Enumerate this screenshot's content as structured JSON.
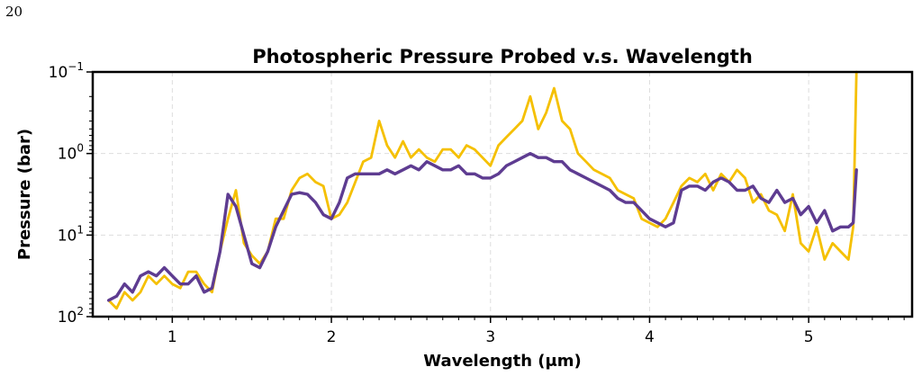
{
  "page_number": "20",
  "chart_data": {
    "type": "line",
    "title": "Photospheric Pressure Probed v.s. Wavelength",
    "xlabel": "Wavelength (μm)",
    "ylabel": "Pressure (bar)",
    "xlim": [
      0.5,
      5.65
    ],
    "ylim_log10": [
      2,
      -1
    ],
    "y_axis": "log, inverted (high pressure at bottom)",
    "grid": true,
    "x_ticks": [
      1,
      2,
      3,
      4,
      5
    ],
    "x_tick_labels": [
      "1",
      "2",
      "3",
      "4",
      "5"
    ],
    "y_ticks_log10": [
      -1,
      0,
      1,
      2
    ],
    "y_tick_bases": [
      "10",
      "10",
      "10",
      "10"
    ],
    "y_tick_exponents": [
      "−1",
      "0",
      "1",
      "2"
    ],
    "series": [
      {
        "color": "#F5C000",
        "x": [
          0.6,
          0.65,
          0.7,
          0.75,
          0.8,
          0.85,
          0.9,
          0.95,
          1.0,
          1.05,
          1.1,
          1.15,
          1.2,
          1.25,
          1.3,
          1.35,
          1.4,
          1.45,
          1.5,
          1.55,
          1.6,
          1.65,
          1.7,
          1.75,
          1.8,
          1.85,
          1.9,
          1.95,
          2.0,
          2.05,
          2.1,
          2.15,
          2.2,
          2.25,
          2.3,
          2.35,
          2.4,
          2.45,
          2.5,
          2.55,
          2.6,
          2.65,
          2.7,
          2.75,
          2.8,
          2.85,
          2.9,
          2.95,
          3.0,
          3.05,
          3.1,
          3.15,
          3.2,
          3.25,
          3.3,
          3.35,
          3.4,
          3.45,
          3.5,
          3.55,
          3.6,
          3.65,
          3.7,
          3.75,
          3.8,
          3.85,
          3.9,
          3.95,
          4.0,
          4.05,
          4.1,
          4.15,
          4.2,
          4.25,
          4.3,
          4.35,
          4.4,
          4.45,
          4.5,
          4.55,
          4.6,
          4.65,
          4.7,
          4.75,
          4.8,
          4.85,
          4.9,
          4.95,
          5.0,
          5.05,
          5.1,
          5.15,
          5.2,
          5.25,
          5.28,
          5.3
        ],
        "y_log10": [
          1.8,
          1.9,
          1.7,
          1.8,
          1.7,
          1.5,
          1.6,
          1.5,
          1.6,
          1.65,
          1.45,
          1.45,
          1.6,
          1.7,
          1.2,
          0.8,
          0.45,
          1.1,
          1.25,
          1.35,
          1.2,
          0.8,
          0.8,
          0.45,
          0.3,
          0.25,
          0.35,
          0.4,
          0.8,
          0.75,
          0.6,
          0.35,
          0.1,
          0.05,
          -0.4,
          -0.1,
          0.05,
          -0.15,
          0.05,
          -0.05,
          0.05,
          0.1,
          -0.05,
          -0.05,
          0.05,
          -0.1,
          -0.05,
          0.05,
          0.15,
          -0.1,
          -0.2,
          -0.3,
          -0.4,
          -0.7,
          -0.3,
          -0.5,
          -0.8,
          -0.4,
          -0.3,
          0.0,
          0.1,
          0.2,
          0.25,
          0.3,
          0.45,
          0.5,
          0.55,
          0.8,
          0.85,
          0.9,
          0.8,
          0.6,
          0.4,
          0.3,
          0.35,
          0.25,
          0.45,
          0.25,
          0.35,
          0.2,
          0.3,
          0.6,
          0.5,
          0.7,
          0.75,
          0.95,
          0.5,
          1.1,
          1.2,
          0.9,
          1.3,
          1.1,
          1.2,
          1.3,
          0.9,
          -1.0
        ],
        "name": ""
      },
      {
        "color": "#5E3C91",
        "x": [
          0.6,
          0.65,
          0.7,
          0.75,
          0.8,
          0.85,
          0.9,
          0.95,
          1.0,
          1.05,
          1.1,
          1.15,
          1.2,
          1.25,
          1.3,
          1.35,
          1.4,
          1.45,
          1.5,
          1.55,
          1.6,
          1.65,
          1.7,
          1.75,
          1.8,
          1.85,
          1.9,
          1.95,
          2.0,
          2.05,
          2.1,
          2.15,
          2.2,
          2.25,
          2.3,
          2.35,
          2.4,
          2.45,
          2.5,
          2.55,
          2.6,
          2.65,
          2.7,
          2.75,
          2.8,
          2.85,
          2.9,
          2.95,
          3.0,
          3.05,
          3.1,
          3.15,
          3.2,
          3.25,
          3.3,
          3.35,
          3.4,
          3.45,
          3.5,
          3.55,
          3.6,
          3.65,
          3.7,
          3.75,
          3.8,
          3.85,
          3.9,
          3.95,
          4.0,
          4.05,
          4.1,
          4.15,
          4.2,
          4.25,
          4.3,
          4.35,
          4.4,
          4.45,
          4.5,
          4.55,
          4.6,
          4.65,
          4.7,
          4.75,
          4.8,
          4.85,
          4.9,
          4.95,
          5.0,
          5.05,
          5.1,
          5.15,
          5.2,
          5.25,
          5.28,
          5.3
        ],
        "y_log10": [
          1.8,
          1.75,
          1.6,
          1.7,
          1.5,
          1.45,
          1.5,
          1.4,
          1.5,
          1.6,
          1.6,
          1.5,
          1.7,
          1.65,
          1.2,
          0.5,
          0.65,
          1.0,
          1.35,
          1.4,
          1.2,
          0.9,
          0.7,
          0.5,
          0.48,
          0.5,
          0.6,
          0.75,
          0.8,
          0.6,
          0.3,
          0.25,
          0.25,
          0.25,
          0.25,
          0.2,
          0.25,
          0.2,
          0.15,
          0.2,
          0.1,
          0.15,
          0.2,
          0.2,
          0.15,
          0.25,
          0.25,
          0.3,
          0.3,
          0.25,
          0.15,
          0.1,
          0.05,
          0.0,
          0.05,
          0.05,
          0.1,
          0.1,
          0.2,
          0.25,
          0.3,
          0.35,
          0.4,
          0.45,
          0.55,
          0.6,
          0.6,
          0.7,
          0.8,
          0.85,
          0.9,
          0.85,
          0.45,
          0.4,
          0.4,
          0.45,
          0.35,
          0.3,
          0.35,
          0.45,
          0.45,
          0.4,
          0.55,
          0.6,
          0.45,
          0.6,
          0.55,
          0.75,
          0.65,
          0.85,
          0.7,
          0.95,
          0.9,
          0.9,
          0.85,
          0.2
        ]
      }
    ]
  }
}
